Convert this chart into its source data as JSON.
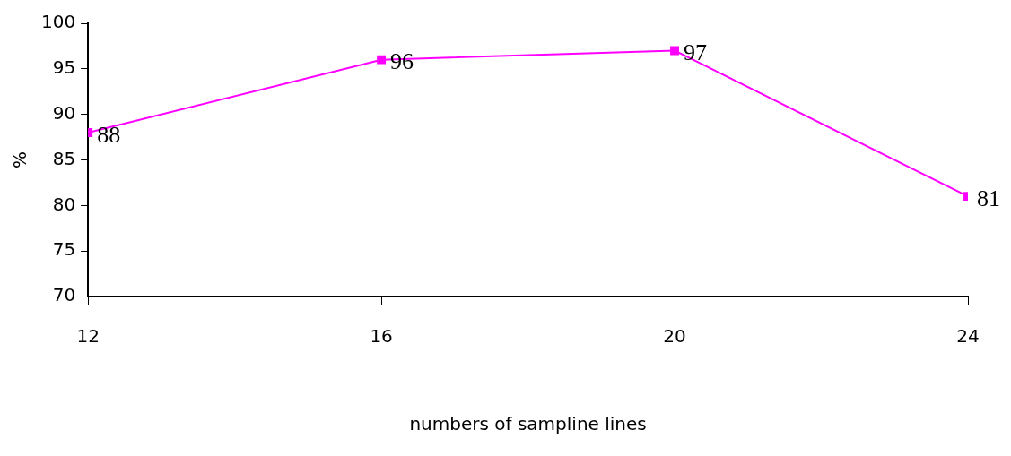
{
  "chart_data": {
    "type": "line",
    "xlabel": "numbers of sampline lines",
    "ylabel": "%",
    "x": [
      12,
      16,
      20,
      24
    ],
    "series": [
      {
        "color": "#ff00ff",
        "values": [
          88,
          96,
          97,
          81
        ]
      }
    ],
    "xlim": [
      12,
      24
    ],
    "xticks": [
      12,
      16,
      20,
      24
    ],
    "ylim": [
      70,
      100
    ],
    "yticks": [
      70,
      75,
      80,
      85,
      90,
      95,
      100
    ],
    "data_labels": true,
    "marker": "square",
    "line_style": "solid",
    "grid": false,
    "legend": false
  }
}
